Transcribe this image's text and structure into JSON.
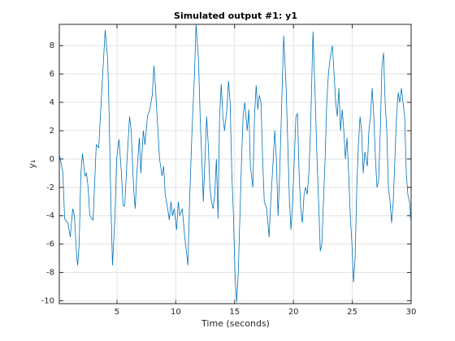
{
  "chart_data": {
    "type": "line",
    "title": "Simulated output #1: y1",
    "xlabel": "Time (seconds)",
    "ylabel": "y₁",
    "xlim": [
      0.1,
      30
    ],
    "ylim": [
      -10.2,
      9.5
    ],
    "xticks": [
      5,
      10,
      15,
      20,
      25,
      30
    ],
    "yticks": [
      -10,
      -8,
      -6,
      -4,
      -2,
      0,
      2,
      4,
      6,
      8
    ],
    "grid": true,
    "x": [
      0.14,
      0.41,
      0.55,
      0.83,
      1.03,
      1.24,
      1.38,
      1.59,
      1.66,
      1.79,
      1.93,
      2.07,
      2.28,
      2.41,
      2.55,
      2.69,
      2.97,
      3.24,
      3.45,
      3.72,
      4.0,
      4.21,
      4.34,
      4.48,
      4.62,
      4.83,
      4.97,
      5.17,
      5.38,
      5.52,
      5.66,
      5.86,
      6.07,
      6.21,
      6.41,
      6.55,
      6.69,
      6.9,
      7.03,
      7.24,
      7.38,
      7.59,
      7.79,
      8.0,
      8.14,
      8.28,
      8.41,
      8.62,
      8.83,
      8.97,
      9.1,
      9.31,
      9.45,
      9.59,
      9.72,
      9.86,
      10.07,
      10.21,
      10.34,
      10.55,
      10.76,
      11.03,
      11.17,
      11.38,
      11.59,
      11.72,
      11.93,
      12.07,
      12.21,
      12.34,
      12.48,
      12.62,
      12.76,
      12.9,
      13.03,
      13.17,
      13.31,
      13.45,
      13.59,
      13.72,
      13.86,
      14.0,
      14.14,
      14.34,
      14.48,
      14.62,
      14.76,
      14.9,
      15.03,
      15.17,
      15.31,
      15.45,
      15.59,
      15.72,
      15.86,
      16.07,
      16.21,
      16.34,
      16.55,
      16.69,
      16.83,
      16.97,
      17.1,
      17.24,
      17.38,
      17.52,
      17.72,
      17.93,
      18.07,
      18.28,
      18.41,
      18.55,
      18.69,
      18.83,
      18.97,
      19.17,
      19.38,
      19.52,
      19.66,
      19.79,
      19.93,
      20.07,
      20.21,
      20.34,
      20.48,
      20.62,
      20.76,
      20.9,
      21.03,
      21.17,
      21.31,
      21.45,
      21.66,
      21.86,
      22.0,
      22.14,
      22.28,
      22.41,
      22.55,
      22.69,
      22.83,
      22.97,
      23.1,
      23.31,
      23.45,
      23.59,
      23.72,
      23.86,
      24.0,
      24.14,
      24.28,
      24.41,
      24.55,
      24.69,
      24.83,
      24.97,
      25.1,
      25.24,
      25.38,
      25.52,
      25.66,
      25.79,
      25.93,
      26.07,
      26.28,
      26.41,
      26.55,
      26.69,
      26.83,
      26.97,
      27.1,
      27.24,
      27.38,
      27.52,
      27.66,
      27.79,
      27.93,
      28.07,
      28.21,
      28.34,
      28.48,
      28.62,
      28.76,
      28.9,
      29.03,
      29.17,
      29.31,
      29.45,
      29.59,
      29.72,
      29.86,
      30.0
    ],
    "series": [
      {
        "name": "y1",
        "color": "#0072bd",
        "values": [
          0.2,
          -1,
          -4.2,
          -4.5,
          -5.5,
          -3.5,
          -4,
          -7,
          -7.5,
          -6,
          -1,
          0.4,
          -1.2,
          -1,
          -2,
          -4,
          -4.3,
          1,
          0.8,
          5,
          9.1,
          7,
          3,
          -3,
          -7.5,
          -4,
          0,
          1.4,
          -1,
          -3.3,
          -3.3,
          0,
          3,
          2,
          -2,
          -3.5,
          -1,
          1.5,
          -1,
          2,
          1,
          3,
          3.5,
          4.5,
          6.6,
          5,
          3,
          0,
          -1.2,
          -0.5,
          -2.5,
          -3.5,
          -4.3,
          -3,
          -4,
          -3.5,
          -5,
          -3,
          -4,
          -3.5,
          -5.5,
          -7.5,
          -3,
          2,
          6,
          9.5,
          7,
          3,
          0,
          -3,
          0,
          3,
          1,
          -2,
          -3,
          -3.5,
          -2.5,
          0,
          -4.2,
          3,
          5.3,
          3,
          2,
          3.5,
          5.5,
          4,
          -1,
          -4,
          -8,
          -10.1,
          -8,
          -4,
          0,
          3,
          4,
          2,
          3.5,
          -0.5,
          -2,
          3,
          5.2,
          3.5,
          4.5,
          4,
          0,
          -3,
          -3.5,
          -5.5,
          -3,
          0,
          2,
          0,
          -4,
          -1,
          3,
          8.7,
          5,
          1,
          -3,
          -5,
          -3,
          0,
          3,
          3.2,
          -1,
          -3.5,
          -4.5,
          -2.5,
          -2,
          -2.5,
          -1,
          2,
          9,
          4,
          0,
          -3,
          -6.5,
          -6,
          -3,
          0,
          4,
          6,
          7,
          8,
          6,
          4,
          3,
          5,
          2,
          3.5,
          2,
          0,
          1.5,
          -1,
          -4,
          -6,
          -8.7,
          -7,
          -2,
          1,
          3,
          2,
          -1,
          0.5,
          -0.5,
          2,
          3,
          5,
          3,
          0,
          -2,
          -1.5,
          2,
          6.5,
          7.5,
          4,
          2,
          -2,
          -3,
          -4.5,
          -3,
          0,
          3,
          4.7,
          4,
          5,
          4,
          3,
          -1,
          -2.5,
          -3,
          -4.5
        ]
      }
    ]
  }
}
